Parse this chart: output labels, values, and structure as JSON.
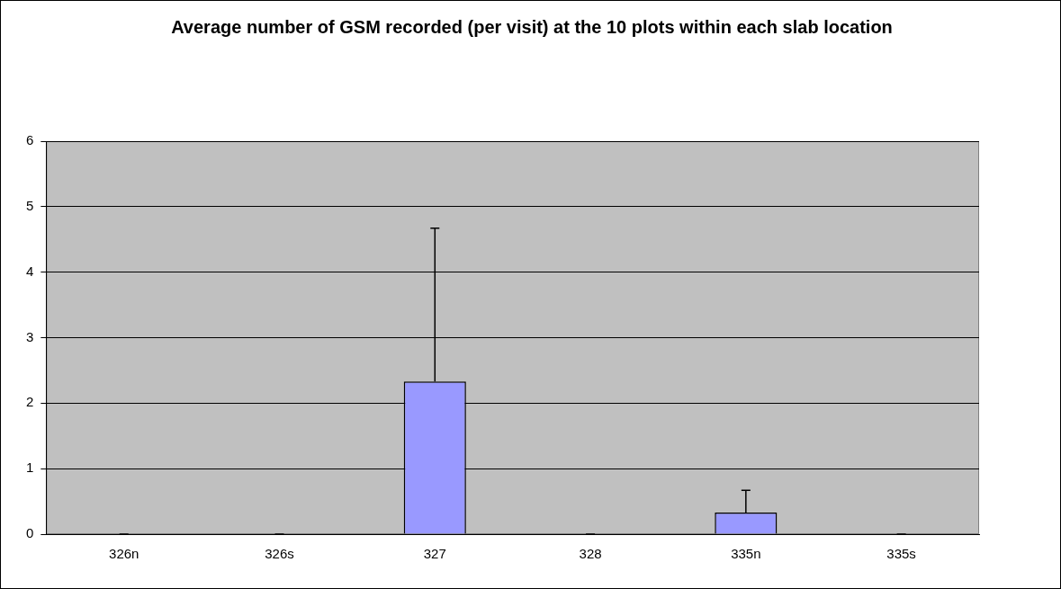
{
  "chart_data": {
    "type": "bar",
    "title": "Average number of GSM recorded (per visit) at the 10 plots within each slab location",
    "categories": [
      "326n",
      "326s",
      "327",
      "328",
      "335n",
      "335s"
    ],
    "values": [
      0,
      0,
      2.33,
      0,
      0.33,
      0
    ],
    "errors": [
      [
        0,
        0
      ],
      [
        0,
        0
      ],
      [
        2.33,
        4.67
      ],
      [
        0,
        0
      ],
      [
        0.33,
        0.67
      ],
      [
        0,
        0
      ]
    ],
    "color": "#9999ff",
    "ylim": [
      0,
      6
    ],
    "yticks": [
      0,
      1,
      2,
      3,
      4,
      5,
      6
    ],
    "grid": "y",
    "legend": false
  }
}
